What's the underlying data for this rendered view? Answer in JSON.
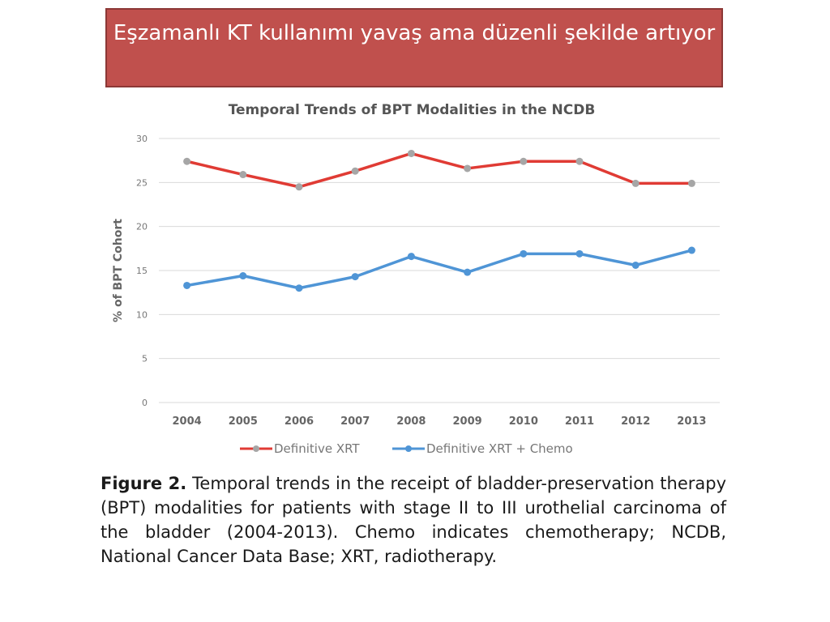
{
  "slide": {
    "title": "Eşzamanlı KT kullanımı yavaş ama düzenli şekilde artıyor"
  },
  "chart_data": {
    "type": "line",
    "title": "Temporal Trends of BPT Modalities in the NCDB",
    "xlabel": "",
    "ylabel": "% of BPT Cohort",
    "ylim": [
      0,
      30
    ],
    "yticks": [
      "0",
      "5",
      "10",
      "15",
      "20",
      "25",
      "30"
    ],
    "categories": [
      "2004",
      "2005",
      "2006",
      "2007",
      "2008",
      "2009",
      "2010",
      "2011",
      "2012",
      "2013"
    ],
    "grid": true,
    "legend_position": "bottom",
    "series": [
      {
        "name": "Definitive XRT",
        "color": "#e03b34",
        "marker_color": "#a6a6a6",
        "values": [
          27.4,
          25.9,
          24.5,
          26.3,
          28.3,
          26.6,
          27.4,
          27.4,
          24.9,
          24.9
        ]
      },
      {
        "name": "Definitive XRT + Chemo",
        "color": "#4f95d6",
        "marker_color": "#4f95d6",
        "values": [
          13.3,
          14.4,
          13.0,
          14.3,
          16.6,
          14.8,
          16.9,
          16.9,
          15.6,
          17.3
        ]
      }
    ]
  },
  "figure": {
    "label": "Figure 2.",
    "caption": "Temporal trends in the receipt of bladder-preservation therapy (BPT) modalities for patients with stage II to III urothelial carcinoma of the bladder (2004-2013). Chemo indicates chemotherapy; NCDB, National Cancer Data Base; XRT, radiotherapy."
  }
}
